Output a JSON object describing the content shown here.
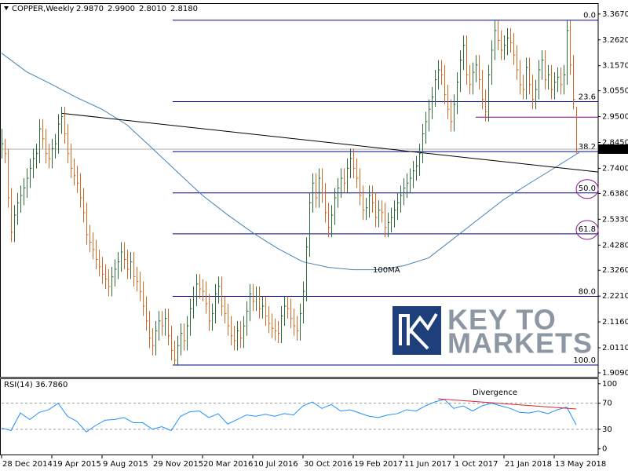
{
  "chart_data": [
    {
      "type": "ohlc",
      "title": "COPPER,Weekly",
      "readout": [
        "2.9870",
        "2.9900",
        "2.8010",
        "2.8180"
      ],
      "xlim": [
        0,
        190
      ],
      "ylim": [
        1.893,
        3.408
      ],
      "yticks": [
        {
          "value": 3.367,
          "label": "3.3670"
        },
        {
          "value": 3.262,
          "label": "3.2620"
        },
        {
          "value": 3.157,
          "label": "3.1570"
        },
        {
          "value": 3.055,
          "label": "3.0550"
        },
        {
          "value": 2.95,
          "label": "2.9500"
        },
        {
          "value": 2.845,
          "label": "2.8450"
        },
        {
          "value": 2.74,
          "label": "2.7400"
        },
        {
          "value": 2.638,
          "label": "2.6380"
        },
        {
          "value": 2.533,
          "label": "2.5330"
        },
        {
          "value": 2.428,
          "label": "2.4280"
        },
        {
          "value": 2.326,
          "label": "2.3260"
        },
        {
          "value": 2.221,
          "label": "2.2210"
        },
        {
          "value": 2.116,
          "label": "2.1160"
        },
        {
          "value": 2.011,
          "label": "2.0110"
        },
        {
          "value": 1.909,
          "label": "1.9090"
        }
      ],
      "up_color": "#2e6b3a",
      "down_color": "#d2691e",
      "high": [
        2.9,
        2.86,
        2.82,
        2.66,
        2.59,
        2.64,
        2.67,
        2.7,
        2.74,
        2.78,
        2.82,
        2.84,
        2.94,
        2.94,
        2.9,
        2.84,
        2.86,
        2.88,
        2.96,
        2.99,
        2.99,
        2.92,
        2.84,
        2.78,
        2.75,
        2.72,
        2.66,
        2.6,
        2.51,
        2.48,
        2.45,
        2.41,
        2.38,
        2.35,
        2.33,
        2.34,
        2.37,
        2.4,
        2.44,
        2.44,
        2.41,
        2.4,
        2.4,
        2.34,
        2.32,
        2.28,
        2.22,
        2.16,
        2.09,
        2.12,
        2.16,
        2.16,
        2.17,
        2.17,
        2.1,
        2.04,
        2.06,
        2.11,
        2.11,
        2.14,
        2.21,
        2.26,
        2.31,
        2.31,
        2.29,
        2.28,
        2.23,
        2.19,
        2.27,
        2.3,
        2.3,
        2.22,
        2.19,
        2.14,
        2.1,
        2.12,
        2.12,
        2.14,
        2.2,
        2.27,
        2.27,
        2.26,
        2.26,
        2.22,
        2.22,
        2.18,
        2.15,
        2.13,
        2.12,
        2.18,
        2.22,
        2.22,
        2.21,
        2.17,
        2.14,
        2.19,
        2.28,
        2.46,
        2.64,
        2.72,
        2.72,
        2.74,
        2.74,
        2.68,
        2.6,
        2.59,
        2.66,
        2.7,
        2.74,
        2.74,
        2.78,
        2.82,
        2.82,
        2.78,
        2.74,
        2.67,
        2.62,
        2.67,
        2.67,
        2.64,
        2.61,
        2.61,
        2.6,
        2.56,
        2.58,
        2.61,
        2.64,
        2.67,
        2.7,
        2.72,
        2.74,
        2.77,
        2.79,
        2.84,
        2.92,
        2.97,
        3.02,
        3.07,
        3.14,
        3.18,
        3.18,
        3.16,
        3.08,
        3.02,
        3.04,
        3.13,
        3.22,
        3.28,
        3.28,
        3.16,
        3.17,
        3.2,
        3.2,
        3.14,
        3.06,
        3.16,
        3.26,
        3.34,
        3.34,
        3.3,
        3.28,
        3.31,
        3.31,
        3.29,
        3.24,
        3.18,
        3.12,
        3.19,
        3.19,
        3.12,
        3.1,
        3.18,
        3.22,
        3.22,
        3.16,
        3.16,
        3.13,
        3.15,
        3.15,
        3.16,
        3.34,
        3.34,
        3.2,
        2.99
      ],
      "low": [
        2.78,
        2.76,
        2.58,
        2.44,
        2.44,
        2.51,
        2.56,
        2.59,
        2.62,
        2.66,
        2.7,
        2.74,
        2.76,
        2.82,
        2.76,
        2.74,
        2.74,
        2.78,
        2.8,
        2.88,
        2.84,
        2.76,
        2.7,
        2.67,
        2.64,
        2.58,
        2.52,
        2.43,
        2.4,
        2.37,
        2.33,
        2.3,
        2.27,
        2.25,
        2.22,
        2.22,
        2.26,
        2.29,
        2.32,
        2.33,
        2.29,
        2.29,
        2.26,
        2.24,
        2.2,
        2.14,
        2.08,
        2.01,
        1.98,
        1.98,
        2.04,
        2.06,
        2.06,
        2.02,
        1.96,
        1.94,
        1.94,
        1.98,
        2.0,
        2.0,
        2.06,
        2.13,
        2.18,
        2.21,
        2.2,
        2.15,
        2.08,
        2.08,
        2.11,
        2.19,
        2.14,
        2.11,
        2.06,
        2.02,
        2.0,
        2.0,
        2.01,
        2.01,
        2.06,
        2.12,
        2.16,
        2.16,
        2.13,
        2.13,
        2.1,
        2.07,
        2.05,
        2.04,
        2.03,
        2.03,
        2.1,
        2.13,
        2.09,
        2.06,
        2.04,
        2.04,
        2.11,
        2.2,
        2.38,
        2.56,
        2.58,
        2.58,
        2.6,
        2.52,
        2.46,
        2.46,
        2.51,
        2.58,
        2.62,
        2.64,
        2.64,
        2.7,
        2.7,
        2.66,
        2.59,
        2.53,
        2.53,
        2.54,
        2.56,
        2.5,
        2.5,
        2.52,
        2.46,
        2.46,
        2.48,
        2.5,
        2.53,
        2.56,
        2.59,
        2.62,
        2.64,
        2.66,
        2.69,
        2.71,
        2.76,
        2.84,
        2.89,
        2.94,
        2.99,
        3.06,
        3.08,
        3.0,
        2.94,
        2.89,
        2.89,
        2.96,
        3.05,
        3.14,
        3.08,
        3.04,
        3.04,
        3.09,
        3.06,
        2.98,
        2.93,
        2.93,
        3.08,
        3.18,
        3.22,
        3.18,
        3.18,
        3.2,
        3.21,
        3.16,
        3.1,
        3.04,
        3.02,
        3.02,
        3.04,
        2.98,
        2.98,
        3.02,
        3.1,
        3.06,
        3.06,
        3.02,
        3.02,
        3.05,
        3.04,
        3.04,
        3.08,
        3.12,
        2.98,
        2.801
      ],
      "close": [
        2.84,
        2.8,
        2.62,
        2.48,
        2.55,
        2.6,
        2.63,
        2.66,
        2.7,
        2.74,
        2.78,
        2.8,
        2.9,
        2.86,
        2.8,
        2.78,
        2.82,
        2.84,
        2.92,
        2.95,
        2.88,
        2.8,
        2.74,
        2.71,
        2.68,
        2.62,
        2.56,
        2.47,
        2.44,
        2.41,
        2.37,
        2.34,
        2.31,
        2.29,
        2.26,
        2.3,
        2.33,
        2.36,
        2.4,
        2.37,
        2.33,
        2.36,
        2.3,
        2.28,
        2.24,
        2.18,
        2.12,
        2.05,
        2.02,
        2.08,
        2.12,
        2.1,
        2.13,
        2.06,
        2.0,
        1.96,
        2.02,
        2.07,
        2.04,
        2.1,
        2.17,
        2.22,
        2.27,
        2.25,
        2.24,
        2.19,
        2.12,
        2.15,
        2.23,
        2.26,
        2.18,
        2.15,
        2.1,
        2.06,
        2.04,
        2.08,
        2.05,
        2.1,
        2.16,
        2.23,
        2.2,
        2.22,
        2.17,
        2.18,
        2.14,
        2.11,
        2.09,
        2.08,
        2.07,
        2.14,
        2.18,
        2.17,
        2.13,
        2.1,
        2.08,
        2.15,
        2.24,
        2.42,
        2.6,
        2.68,
        2.62,
        2.7,
        2.64,
        2.56,
        2.5,
        2.55,
        2.62,
        2.66,
        2.7,
        2.68,
        2.74,
        2.78,
        2.74,
        2.7,
        2.63,
        2.57,
        2.58,
        2.63,
        2.6,
        2.54,
        2.57,
        2.56,
        2.5,
        2.52,
        2.54,
        2.57,
        2.6,
        2.63,
        2.66,
        2.68,
        2.7,
        2.73,
        2.75,
        2.8,
        2.88,
        2.93,
        2.98,
        3.03,
        3.1,
        3.14,
        3.12,
        3.04,
        2.98,
        2.93,
        3.0,
        3.09,
        3.18,
        3.24,
        3.12,
        3.08,
        3.13,
        3.16,
        3.1,
        3.02,
        2.97,
        3.12,
        3.22,
        3.3,
        3.26,
        3.22,
        3.24,
        3.27,
        3.25,
        3.2,
        3.14,
        3.08,
        3.06,
        3.15,
        3.08,
        3.02,
        3.06,
        3.14,
        3.18,
        3.1,
        3.12,
        3.06,
        3.09,
        3.11,
        3.08,
        3.12,
        3.3,
        3.16,
        3.02,
        2.818
      ],
      "price_line": {
        "value": 2.818,
        "label": "2.8180"
      },
      "fib_color": "#00008b",
      "fib_x": [
        54.5,
        190
      ],
      "fib_levels": [
        {
          "value": 3.342,
          "label": "0.0"
        },
        {
          "value": 3.011,
          "label": "23.6"
        },
        {
          "value": 2.808,
          "label": "38.2"
        },
        {
          "value": 2.64,
          "label": "50.0"
        },
        {
          "value": 2.474,
          "label": "61.8"
        },
        {
          "value": 2.22,
          "label": "80.0"
        },
        {
          "value": 1.941,
          "label": "100.0"
        }
      ],
      "trendline": {
        "x": [
          19,
          190
        ],
        "values": [
          2.964,
          2.725
        ],
        "color": "#000000"
      },
      "level_line": {
        "x": [
          151,
          190
        ],
        "values": [
          2.948,
          2.948
        ],
        "color": "#800080"
      },
      "ma": {
        "name": "100MA",
        "color": "#4682b4",
        "x": [
          0,
          8,
          16,
          24,
          32,
          40,
          48,
          56,
          64,
          72,
          80,
          88,
          96,
          104,
          112,
          120,
          128,
          136,
          144,
          152,
          160,
          168,
          176,
          184
        ],
        "values": [
          3.208,
          3.132,
          3.081,
          3.027,
          2.98,
          2.916,
          2.821,
          2.725,
          2.63,
          2.551,
          2.478,
          2.414,
          2.36,
          2.338,
          2.328,
          2.328,
          2.344,
          2.376,
          2.455,
          2.535,
          2.614,
          2.678,
          2.741,
          2.805
        ]
      },
      "watermark": [
        "KEY TO",
        "MARKETS"
      ]
    },
    {
      "type": "line",
      "title": "RSI(14) 36.7860",
      "xlim": [
        0,
        190
      ],
      "ylim": [
        -10,
        107
      ],
      "yticks": [
        0,
        30,
        70,
        100
      ],
      "levels": [
        30,
        70
      ],
      "xticks": [
        {
          "value": 0,
          "label": "28 Dec 2014"
        },
        {
          "value": 16,
          "label": "19 Apr 2015"
        },
        {
          "value": 32,
          "label": "9 Aug 2015"
        },
        {
          "value": 48,
          "label": "29 Nov 2015"
        },
        {
          "value": 64,
          "label": "20 Mar 2016"
        },
        {
          "value": 80,
          "label": "10 Jul 2016"
        },
        {
          "value": 96,
          "label": "30 Oct 2016"
        },
        {
          "value": 112,
          "label": "19 Feb 2017"
        },
        {
          "value": 128,
          "label": "11 Jun 2017"
        },
        {
          "value": 144,
          "label": "1 Oct 2017"
        },
        {
          "value": 160,
          "label": "21 Jan 2018"
        },
        {
          "value": 176,
          "label": "13 May 2018"
        }
      ],
      "color": "#1e90ff",
      "x": [
        0,
        3,
        6,
        9,
        12,
        15,
        18,
        21,
        24,
        27,
        30,
        33,
        36,
        39,
        42,
        45,
        48,
        51,
        54,
        57,
        60,
        63,
        66,
        69,
        72,
        75,
        78,
        81,
        84,
        87,
        90,
        93,
        96,
        99,
        102,
        105,
        108,
        111,
        114,
        117,
        120,
        123,
        126,
        129,
        132,
        135,
        138,
        141,
        144,
        147,
        150,
        153,
        156,
        159,
        162,
        165,
        168,
        171,
        174,
        177,
        180,
        183
      ],
      "values": [
        32,
        28,
        55,
        45,
        56,
        60,
        70,
        50,
        42,
        26,
        36,
        44,
        45,
        48,
        40,
        40,
        30,
        34,
        28,
        50,
        57,
        58,
        48,
        54,
        38,
        45,
        52,
        50,
        53,
        50,
        54,
        52,
        66,
        72,
        62,
        68,
        58,
        60,
        55,
        50,
        48,
        52,
        54,
        60,
        58,
        66,
        72,
        76,
        62,
        66,
        58,
        66,
        70,
        66,
        62,
        56,
        55,
        58,
        54,
        60,
        64,
        36.786
      ],
      "divergence": {
        "label": "Divergence",
        "x": [
          139,
          183
        ],
        "values": [
          76.8,
          61.2
        ],
        "color": "#e0202a"
      }
    }
  ]
}
